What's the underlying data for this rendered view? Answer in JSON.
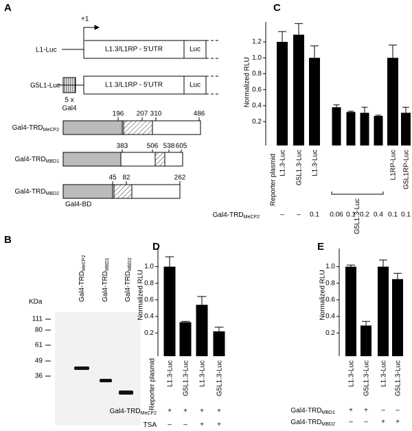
{
  "panel_labels": [
    "A",
    "B",
    "C",
    "D",
    "E"
  ],
  "diagram_a": {
    "constructs": [
      {
        "name": "L1-Luc",
        "tss": "+1",
        "promoter": "L1.3/L1RP - 5'UTR",
        "reporter": "Luc"
      },
      {
        "name": "G5L1-Luc",
        "promoter": "L1.3/L1RP - 5'UTR",
        "reporter": "Luc",
        "gal4": [
          "5 x",
          "Gal4"
        ]
      }
    ],
    "fusions": [
      {
        "label": "Gal4-TRD",
        "sub": "MeCP2",
        "positions": [
          "196",
          "207",
          "310",
          "486"
        ]
      },
      {
        "label": "Gal4-TRD",
        "sub": "MBD1",
        "positions": [
          "383",
          "506",
          "538",
          "605"
        ]
      },
      {
        "label": "Gal4-TRD",
        "sub": "MBD2",
        "positions": [
          "45",
          "82",
          "262"
        ]
      }
    ],
    "domain_label": "Gal4-BD"
  },
  "blot_b": {
    "lanes": [
      {
        "label": "Gal4-TRD",
        "sub": "MeCP2"
      },
      {
        "label": "Gal4-TRD",
        "sub": "MBD1"
      },
      {
        "label": "Gal4-TRD",
        "sub": "MBD2"
      }
    ],
    "unit": "KDa",
    "markers": [
      111,
      80,
      61,
      49,
      36
    ]
  },
  "chart_data": [
    {
      "type": "bar",
      "ylabel": "Normalized RLU",
      "xlabel": "Reporter plasmid",
      "categories": [
        "L1.3-Luc",
        "G5L1.3-Luc",
        "L1.3-Luc",
        null,
        null,
        null,
        null,
        "L1RP-Luc",
        "G5L1RP-Luc"
      ],
      "group_label": "G5L1.3-Luc",
      "values": [
        1.2,
        1.29,
        1.0,
        0.38,
        0.32,
        0.31,
        0.27,
        1.0,
        0.31
      ],
      "errors": [
        0.13,
        0.14,
        0.15,
        0.03,
        0.01,
        0.07,
        0.01,
        0.16,
        0.07
      ],
      "color": "#000000",
      "ylim": [
        -0.1,
        1.45
      ],
      "yticks": [
        0.2,
        0.4,
        0.6,
        0.8,
        {
          "value": 1,
          "label": "1.0"
        },
        1.2
      ],
      "conditions": [
        {
          "label": "Gal4-TRD",
          "sub": "MeCP2",
          "values": [
            "–",
            "–",
            "0.1",
            "0.06",
            "0.1",
            "0.2",
            "0.4",
            "0.1",
            "0.1"
          ]
        }
      ]
    },
    {
      "type": "bar",
      "ylabel": "Normalized RLU",
      "xlabel": "Reporter plasmid",
      "categories": [
        "L1.3-Luc",
        "G5L1.3-Luc",
        "L1.3-Luc",
        "G5L1.3-Luc"
      ],
      "values": [
        1.0,
        0.33,
        0.54,
        0.22
      ],
      "errors": [
        0.12,
        0.01,
        0.1,
        0.05
      ],
      "color": "#000000",
      "ylim": [
        -0.08,
        1.22
      ],
      "yticks": [
        0.2,
        0.4,
        0.6,
        0.8,
        {
          "value": 1,
          "label": "1.0"
        }
      ],
      "conditions": [
        {
          "label": "Gal4-TRD",
          "sub": "MeCP2",
          "values": [
            "+",
            "+",
            "+",
            "+"
          ]
        },
        {
          "label": "TSA",
          "values": [
            "–",
            "–",
            "+",
            "+"
          ]
        }
      ]
    },
    {
      "type": "bar",
      "ylabel": "Normalized RLU",
      "categories": [
        "L1.3-Luc",
        "G5L1.3-Luc",
        "L1.3-Luc",
        "G5L1.3-Luc"
      ],
      "values": [
        1.0,
        0.29,
        1.0,
        0.85
      ],
      "errors": [
        0.02,
        0.05,
        0.08,
        0.07
      ],
      "color": "#000000",
      "ylim": [
        -0.08,
        1.22
      ],
      "yticks": [
        0.2,
        0.4,
        0.6,
        0.8,
        {
          "value": 1,
          "label": "1.0"
        }
      ],
      "conditions": [
        {
          "label": "Gal4-TRD",
          "sub": "MBD1",
          "values": [
            "+",
            "+",
            "–",
            "–"
          ]
        },
        {
          "label": "Gal4-TRD",
          "sub": "MBD2",
          "values": [
            "–",
            "–",
            "+",
            "+"
          ]
        }
      ]
    }
  ]
}
